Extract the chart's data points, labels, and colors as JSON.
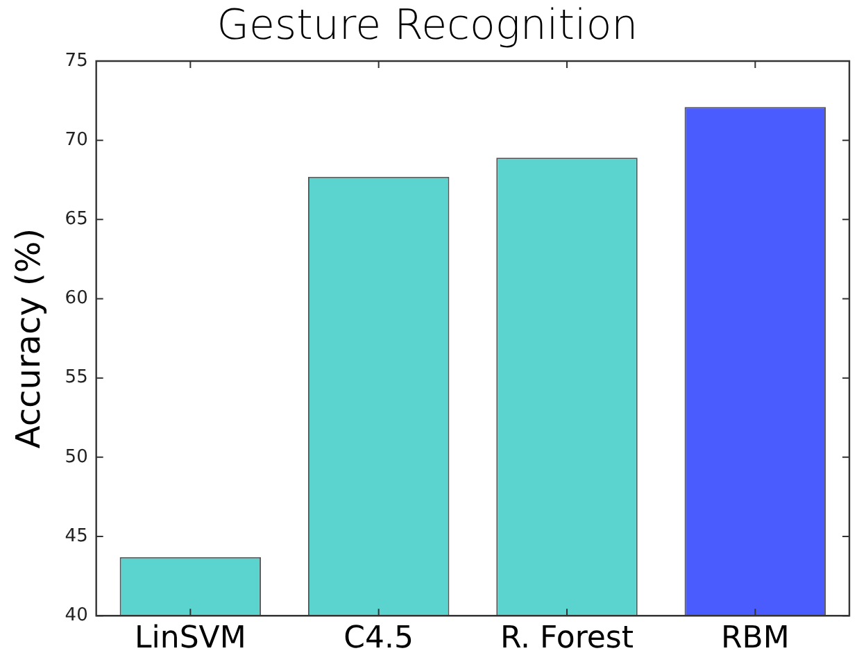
{
  "chart_data": {
    "type": "bar",
    "title": "Gesture Recognition",
    "ylabel": "Accuracy (%)",
    "categories": [
      "LinSVM",
      "C4.5",
      "R. Forest",
      "RBM"
    ],
    "values": [
      43.7,
      67.7,
      68.9,
      72.1
    ],
    "colors": [
      "#5bd3cf",
      "#5bd3cf",
      "#5bd3cf",
      "#4b5cff"
    ],
    "ylim": [
      40,
      75
    ],
    "yticks": [
      40,
      45,
      50,
      55,
      60,
      65,
      70,
      75
    ],
    "grid": false,
    "legend": false
  }
}
